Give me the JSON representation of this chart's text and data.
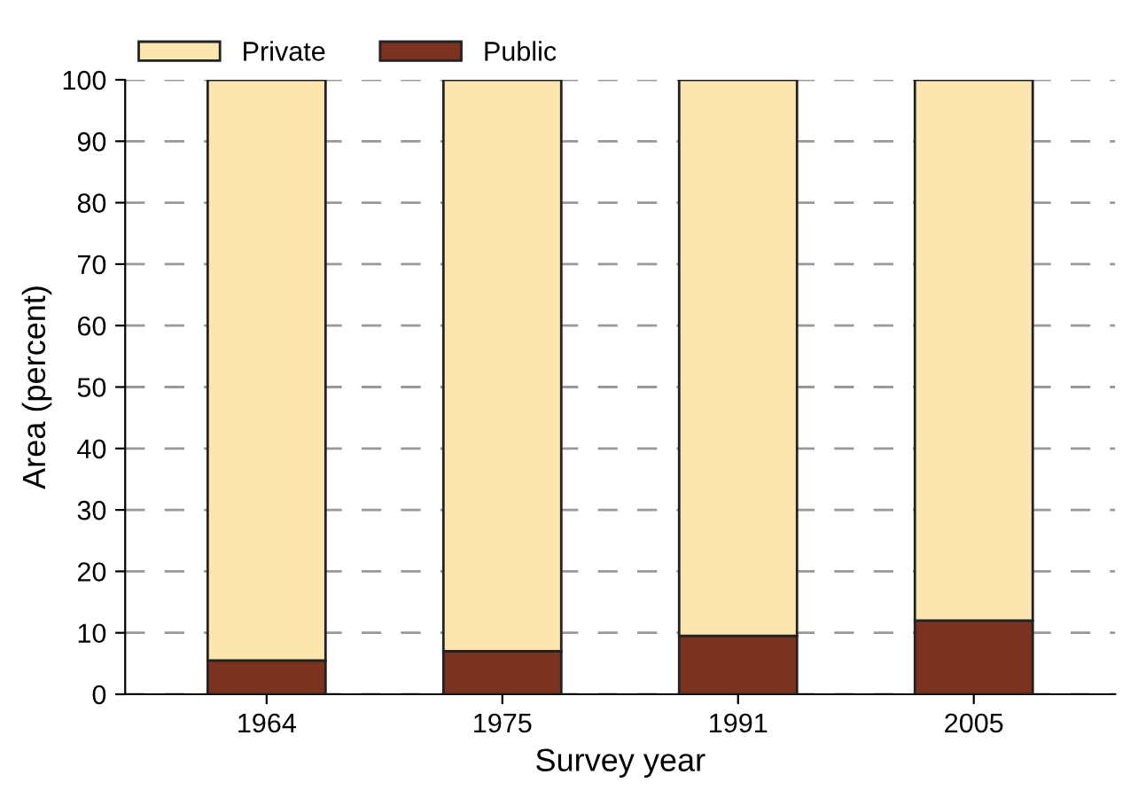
{
  "chart_data": {
    "type": "bar",
    "xlabel": "Survey year",
    "ylabel": "Area (percent)",
    "categories": [
      "1964",
      "1975",
      "1991",
      "2005"
    ],
    "series": [
      {
        "name": "Public",
        "color": "#7b3320",
        "values": [
          5.5,
          7,
          9.5,
          12
        ]
      },
      {
        "name": "Private",
        "color": "#fde5b0",
        "values": [
          94.5,
          93,
          90.5,
          88
        ]
      }
    ],
    "stacked": true,
    "ylim": [
      0,
      100
    ],
    "yticks": [
      0,
      10,
      20,
      30,
      40,
      50,
      60,
      70,
      80,
      90,
      100
    ],
    "grid": "y",
    "legend": "top left"
  }
}
